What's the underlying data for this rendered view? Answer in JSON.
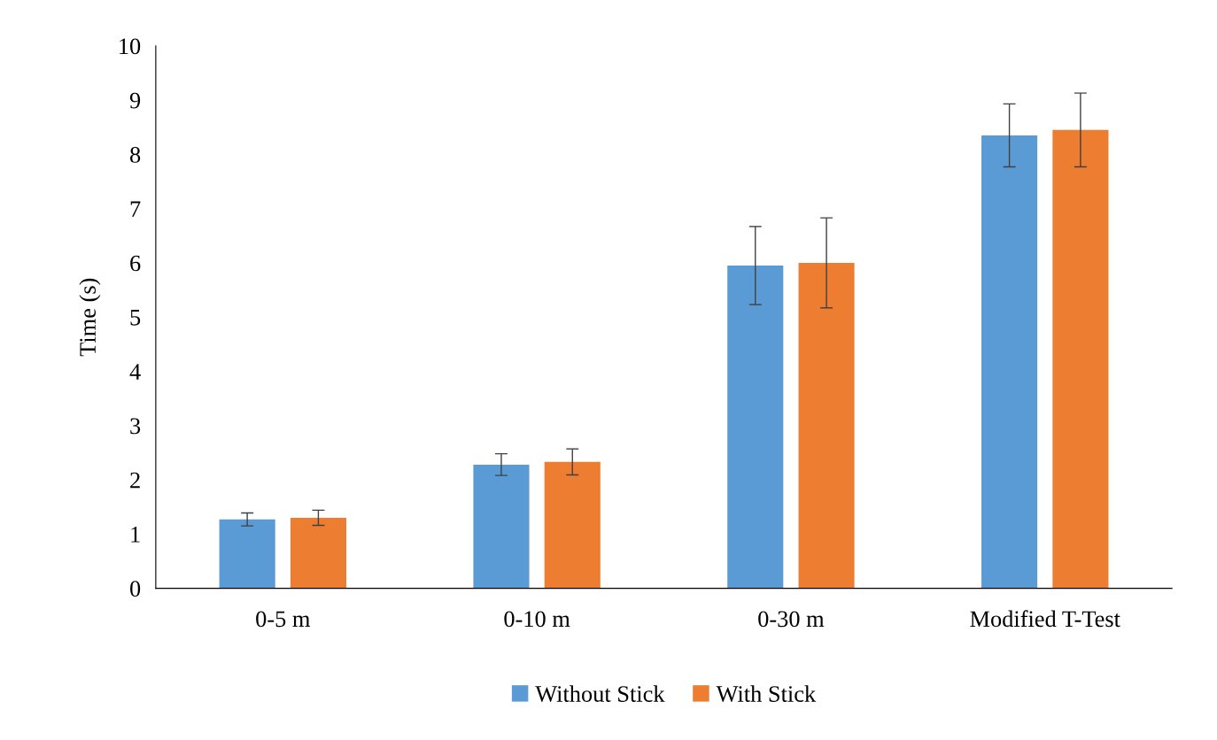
{
  "chart_data": {
    "type": "bar",
    "ylabel": "Time (s)",
    "categories": [
      "0-5 m",
      "0-10 m",
      "0-30 m",
      "Modified T-Test"
    ],
    "series": [
      {
        "name": "Without Stick",
        "color": "#5b9bd5",
        "values": [
          1.27,
          2.28,
          5.95,
          8.35
        ],
        "errors": [
          0.12,
          0.2,
          0.72,
          0.58
        ]
      },
      {
        "name": "With Stick",
        "color": "#ed7d31",
        "values": [
          1.3,
          2.33,
          6.0,
          8.45
        ],
        "errors": [
          0.14,
          0.24,
          0.83,
          0.68
        ]
      }
    ],
    "ylim": [
      0,
      10
    ],
    "yticks": [
      0,
      1,
      2,
      3,
      4,
      5,
      6,
      7,
      8,
      9,
      10
    ],
    "grid": false,
    "legend": "bottom"
  }
}
